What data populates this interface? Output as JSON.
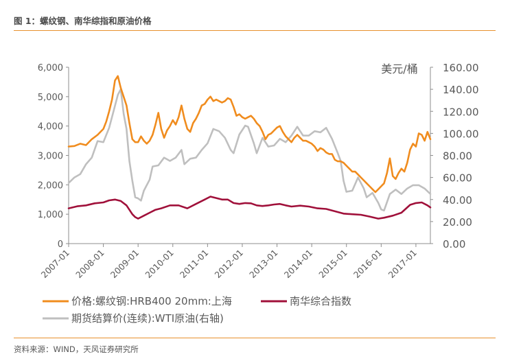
{
  "header": {
    "title": "图 1：螺纹钢、南华综指和原油价格"
  },
  "footer": {
    "source": "资料来源：WIND，天风证券研究所"
  },
  "chart_data": {
    "type": "line",
    "x_range": [
      "2007-01",
      "2017-06"
    ],
    "x_ticks": [
      "2007-01",
      "2008-01",
      "2009-01",
      "2010-01",
      "2011-01",
      "2012-01",
      "2013-01",
      "2014-01",
      "2015-01",
      "2016-01",
      "2017-01"
    ],
    "y_left": {
      "range": [
        0,
        6000
      ],
      "ticks": [
        "0",
        "1,000",
        "2,000",
        "3,000",
        "4,000",
        "5,000",
        "6,000"
      ]
    },
    "y_right": {
      "range": [
        0,
        160
      ],
      "unit_label": "美元/桶",
      "ticks": [
        "0.00",
        "20.00",
        "40.00",
        "60.00",
        "80.00",
        "100.00",
        "120.00",
        "140.00",
        "160.00"
      ]
    },
    "grid": false,
    "legend_position": "bottom",
    "series": [
      {
        "name": "价格:螺纹钢:HRB400 20mm:上海",
        "axis": "left",
        "color": "#f08c1e",
        "points": [
          [
            "2007-01",
            3300
          ],
          [
            "2007-03",
            3320
          ],
          [
            "2007-05",
            3400
          ],
          [
            "2007-07",
            3350
          ],
          [
            "2007-09",
            3550
          ],
          [
            "2007-11",
            3700
          ],
          [
            "2008-01",
            3900
          ],
          [
            "2008-02",
            4150
          ],
          [
            "2008-03",
            4500
          ],
          [
            "2008-04",
            4900
          ],
          [
            "2008-05",
            5550
          ],
          [
            "2008-06",
            5700
          ],
          [
            "2008-07",
            5300
          ],
          [
            "2008-08",
            5000
          ],
          [
            "2008-09",
            4700
          ],
          [
            "2008-10",
            4100
          ],
          [
            "2008-11",
            3550
          ],
          [
            "2008-12",
            3450
          ],
          [
            "2009-01",
            3450
          ],
          [
            "2009-02",
            3650
          ],
          [
            "2009-03",
            3500
          ],
          [
            "2009-04",
            3400
          ],
          [
            "2009-05",
            3500
          ],
          [
            "2009-06",
            3700
          ],
          [
            "2009-07",
            4050
          ],
          [
            "2009-08",
            4450
          ],
          [
            "2009-09",
            3900
          ],
          [
            "2009-10",
            3600
          ],
          [
            "2009-11",
            3850
          ],
          [
            "2009-12",
            4000
          ],
          [
            "2010-01",
            4200
          ],
          [
            "2010-02",
            4050
          ],
          [
            "2010-03",
            4300
          ],
          [
            "2010-04",
            4700
          ],
          [
            "2010-05",
            4250
          ],
          [
            "2010-06",
            3900
          ],
          [
            "2010-07",
            3800
          ],
          [
            "2010-08",
            4100
          ],
          [
            "2010-09",
            4250
          ],
          [
            "2010-10",
            4450
          ],
          [
            "2010-11",
            4700
          ],
          [
            "2010-12",
            4750
          ],
          [
            "2011-01",
            4900
          ],
          [
            "2011-02",
            5000
          ],
          [
            "2011-03",
            4850
          ],
          [
            "2011-04",
            4900
          ],
          [
            "2011-05",
            4850
          ],
          [
            "2011-06",
            4800
          ],
          [
            "2011-07",
            4850
          ],
          [
            "2011-08",
            4950
          ],
          [
            "2011-09",
            4900
          ],
          [
            "2011-10",
            4650
          ],
          [
            "2011-11",
            4350
          ],
          [
            "2011-12",
            4400
          ],
          [
            "2012-01",
            4300
          ],
          [
            "2012-02",
            4250
          ],
          [
            "2012-03",
            4300
          ],
          [
            "2012-04",
            4350
          ],
          [
            "2012-05",
            4250
          ],
          [
            "2012-06",
            4100
          ],
          [
            "2012-07",
            4000
          ],
          [
            "2012-08",
            3800
          ],
          [
            "2012-09",
            3550
          ],
          [
            "2012-10",
            3700
          ],
          [
            "2012-11",
            3750
          ],
          [
            "2012-12",
            3850
          ],
          [
            "2013-01",
            3950
          ],
          [
            "2013-02",
            4000
          ],
          [
            "2013-03",
            3800
          ],
          [
            "2013-04",
            3650
          ],
          [
            "2013-05",
            3550
          ],
          [
            "2013-06",
            3450
          ],
          [
            "2013-07",
            3600
          ],
          [
            "2013-08",
            3700
          ],
          [
            "2013-09",
            3600
          ],
          [
            "2013-10",
            3500
          ],
          [
            "2013-11",
            3500
          ],
          [
            "2013-12",
            3450
          ],
          [
            "2014-01",
            3400
          ],
          [
            "2014-02",
            3300
          ],
          [
            "2014-03",
            3150
          ],
          [
            "2014-04",
            3250
          ],
          [
            "2014-05",
            3200
          ],
          [
            "2014-06",
            3100
          ],
          [
            "2014-07",
            3050
          ],
          [
            "2014-08",
            3050
          ],
          [
            "2014-09",
            2850
          ],
          [
            "2014-10",
            2800
          ],
          [
            "2014-11",
            2800
          ],
          [
            "2014-12",
            2750
          ],
          [
            "2015-01",
            2650
          ],
          [
            "2015-02",
            2550
          ],
          [
            "2015-03",
            2450
          ],
          [
            "2015-04",
            2450
          ],
          [
            "2015-05",
            2350
          ],
          [
            "2015-06",
            2250
          ],
          [
            "2015-07",
            2150
          ],
          [
            "2015-08",
            2050
          ],
          [
            "2015-09",
            1950
          ],
          [
            "2015-10",
            1850
          ],
          [
            "2015-11",
            1750
          ],
          [
            "2015-12",
            1850
          ],
          [
            "2016-01",
            1950
          ],
          [
            "2016-02",
            2050
          ],
          [
            "2016-03",
            2400
          ],
          [
            "2016-04",
            2900
          ],
          [
            "2016-05",
            2300
          ],
          [
            "2016-06",
            2200
          ],
          [
            "2016-07",
            2400
          ],
          [
            "2016-08",
            2550
          ],
          [
            "2016-09",
            2450
          ],
          [
            "2016-10",
            2750
          ],
          [
            "2016-11",
            3200
          ],
          [
            "2016-12",
            3400
          ],
          [
            "2017-01",
            3300
          ],
          [
            "2017-02",
            3750
          ],
          [
            "2017-03",
            3700
          ],
          [
            "2017-04",
            3500
          ],
          [
            "2017-05",
            3800
          ],
          [
            "2017-06",
            3550
          ]
        ]
      },
      {
        "name": "南华综合指数",
        "axis": "left",
        "color": "#a0103a",
        "points": [
          [
            "2007-01",
            1200
          ],
          [
            "2007-04",
            1270
          ],
          [
            "2007-07",
            1300
          ],
          [
            "2007-10",
            1370
          ],
          [
            "2008-01",
            1400
          ],
          [
            "2008-03",
            1470
          ],
          [
            "2008-05",
            1500
          ],
          [
            "2008-07",
            1450
          ],
          [
            "2008-09",
            1300
          ],
          [
            "2008-11",
            1000
          ],
          [
            "2008-12",
            900
          ],
          [
            "2009-01",
            850
          ],
          [
            "2009-03",
            950
          ],
          [
            "2009-05",
            1050
          ],
          [
            "2009-07",
            1150
          ],
          [
            "2009-09",
            1200
          ],
          [
            "2009-12",
            1300
          ],
          [
            "2010-03",
            1300
          ],
          [
            "2010-06",
            1200
          ],
          [
            "2010-09",
            1350
          ],
          [
            "2010-12",
            1500
          ],
          [
            "2011-02",
            1600
          ],
          [
            "2011-04",
            1550
          ],
          [
            "2011-06",
            1500
          ],
          [
            "2011-08",
            1500
          ],
          [
            "2011-10",
            1380
          ],
          [
            "2011-12",
            1350
          ],
          [
            "2012-02",
            1380
          ],
          [
            "2012-04",
            1370
          ],
          [
            "2012-06",
            1300
          ],
          [
            "2012-08",
            1280
          ],
          [
            "2012-10",
            1300
          ],
          [
            "2012-12",
            1330
          ],
          [
            "2013-02",
            1350
          ],
          [
            "2013-04",
            1300
          ],
          [
            "2013-06",
            1260
          ],
          [
            "2013-09",
            1290
          ],
          [
            "2013-12",
            1260
          ],
          [
            "2014-03",
            1200
          ],
          [
            "2014-06",
            1180
          ],
          [
            "2014-09",
            1100
          ],
          [
            "2014-12",
            1020
          ],
          [
            "2015-03",
            1000
          ],
          [
            "2015-06",
            980
          ],
          [
            "2015-09",
            920
          ],
          [
            "2015-12",
            850
          ],
          [
            "2016-02",
            880
          ],
          [
            "2016-05",
            950
          ],
          [
            "2016-08",
            1050
          ],
          [
            "2016-11",
            1320
          ],
          [
            "2017-01",
            1380
          ],
          [
            "2017-03",
            1400
          ],
          [
            "2017-05",
            1300
          ],
          [
            "2017-06",
            1230
          ]
        ]
      },
      {
        "name": "期货结算价(连续):WTI原油(右轴)",
        "axis": "right",
        "color": "#bfbfbf",
        "points": [
          [
            "2007-01",
            55
          ],
          [
            "2007-03",
            60
          ],
          [
            "2007-05",
            63
          ],
          [
            "2007-07",
            72
          ],
          [
            "2007-09",
            78
          ],
          [
            "2007-11",
            93
          ],
          [
            "2008-01",
            92
          ],
          [
            "2008-03",
            105
          ],
          [
            "2008-05",
            125
          ],
          [
            "2008-06",
            135
          ],
          [
            "2008-07",
            140
          ],
          [
            "2008-08",
            118
          ],
          [
            "2008-09",
            104
          ],
          [
            "2008-10",
            75
          ],
          [
            "2008-11",
            57
          ],
          [
            "2008-12",
            42
          ],
          [
            "2009-01",
            41
          ],
          [
            "2009-02",
            39
          ],
          [
            "2009-03",
            48
          ],
          [
            "2009-05",
            58
          ],
          [
            "2009-06",
            70
          ],
          [
            "2009-08",
            71
          ],
          [
            "2009-10",
            78
          ],
          [
            "2009-12",
            75
          ],
          [
            "2010-02",
            78
          ],
          [
            "2010-04",
            85
          ],
          [
            "2010-05",
            72
          ],
          [
            "2010-07",
            77
          ],
          [
            "2010-09",
            78
          ],
          [
            "2010-11",
            85
          ],
          [
            "2011-01",
            91
          ],
          [
            "2011-03",
            104
          ],
          [
            "2011-05",
            102
          ],
          [
            "2011-07",
            96
          ],
          [
            "2011-09",
            85
          ],
          [
            "2011-10",
            82
          ],
          [
            "2011-12",
            99
          ],
          [
            "2012-02",
            107
          ],
          [
            "2012-03",
            106
          ],
          [
            "2012-05",
            91
          ],
          [
            "2012-06",
            82
          ],
          [
            "2012-08",
            96
          ],
          [
            "2012-10",
            88
          ],
          [
            "2012-12",
            89
          ],
          [
            "2013-02",
            95
          ],
          [
            "2013-04",
            92
          ],
          [
            "2013-06",
            98
          ],
          [
            "2013-08",
            106
          ],
          [
            "2013-10",
            98
          ],
          [
            "2013-12",
            98
          ],
          [
            "2014-02",
            102
          ],
          [
            "2014-04",
            101
          ],
          [
            "2014-06",
            105
          ],
          [
            "2014-08",
            95
          ],
          [
            "2014-10",
            82
          ],
          [
            "2014-11",
            75
          ],
          [
            "2014-12",
            57
          ],
          [
            "2015-01",
            47
          ],
          [
            "2015-03",
            48
          ],
          [
            "2015-05",
            60
          ],
          [
            "2015-07",
            50
          ],
          [
            "2015-08",
            42
          ],
          [
            "2015-10",
            46
          ],
          [
            "2015-12",
            37
          ],
          [
            "2016-01",
            31
          ],
          [
            "2016-02",
            30
          ],
          [
            "2016-04",
            45
          ],
          [
            "2016-06",
            49
          ],
          [
            "2016-08",
            45
          ],
          [
            "2016-10",
            50
          ],
          [
            "2016-12",
            53
          ],
          [
            "2017-02",
            53
          ],
          [
            "2017-04",
            50
          ],
          [
            "2017-06",
            45
          ]
        ]
      }
    ]
  }
}
